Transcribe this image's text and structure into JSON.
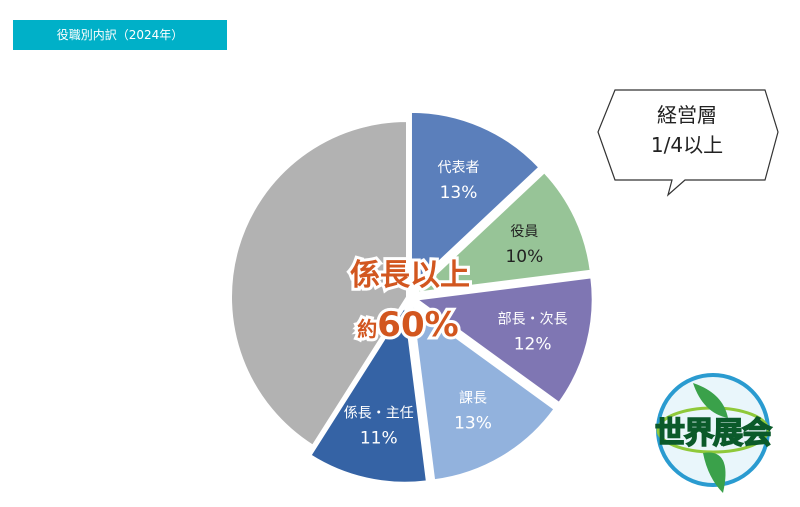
{
  "header": {
    "title": "役職別内訳（2024年）"
  },
  "chart_data": {
    "type": "pie",
    "title": "",
    "slices": [
      {
        "label": "代表者",
        "value": 13,
        "value_label": "13%",
        "color": "#5b7fbb",
        "text_color": "#ffffff"
      },
      {
        "label": "役員",
        "value": 10,
        "value_label": "10%",
        "color": "#97c497",
        "text_color": "#222222"
      },
      {
        "label": "部長・次長",
        "value": 12,
        "value_label": "12%",
        "color": "#7f76b3",
        "text_color": "#ffffff"
      },
      {
        "label": "課長",
        "value": 13,
        "value_label": "13%",
        "color": "#92b2dd",
        "text_color": "#ffffff"
      },
      {
        "label": "係長・主任",
        "value": 11,
        "value_label": "11%",
        "color": "#3563a5",
        "text_color": "#ffffff"
      },
      {
        "label": "",
        "value": 41,
        "value_label": "",
        "color": "#b2b2b2",
        "text_color": "#ffffff"
      }
    ],
    "start": "12 o'clock, clockwise",
    "annotations": {
      "center_line1": "係長以上",
      "center_line2_prefix": "約",
      "center_line2_value": "60%",
      "center_color": "#d2561f"
    }
  },
  "callout": {
    "line1": "経営層",
    "line2": "1/4以上"
  },
  "logo": {
    "text": "世界展会"
  }
}
